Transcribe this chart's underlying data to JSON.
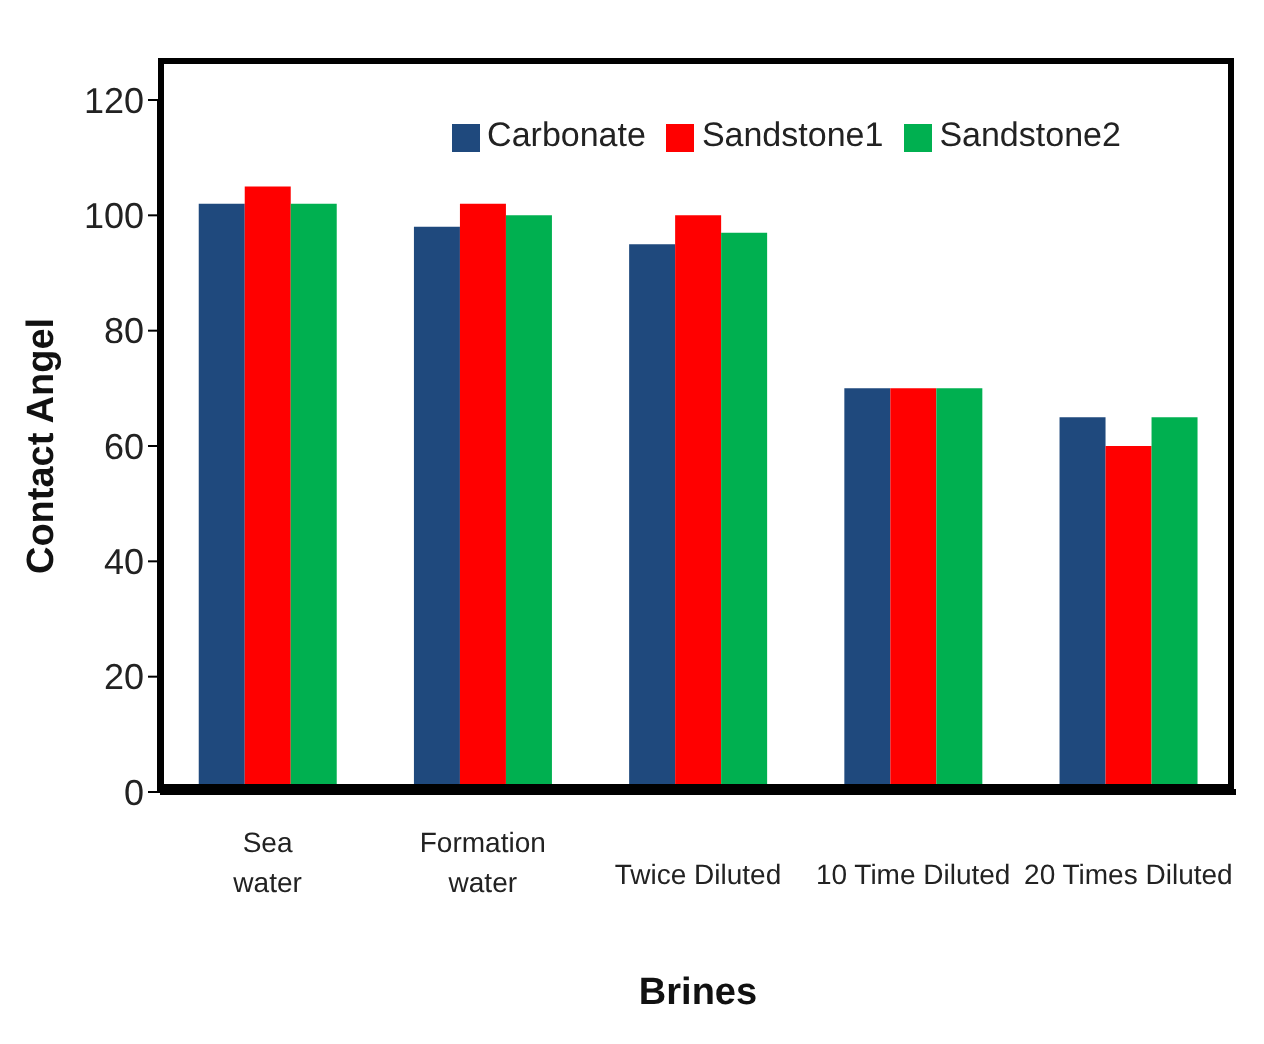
{
  "chart_data": {
    "type": "bar",
    "xlabel": "Brines",
    "ylabel": "Contact Angel",
    "categories": [
      "Sea\nwater",
      "Formation\nwater",
      "Twice Diluted",
      "10 Time Diluted",
      "20 Times Diluted"
    ],
    "series": [
      {
        "name": "Carbonate",
        "color": "#1f497d",
        "values": [
          102,
          98,
          95,
          70,
          65
        ]
      },
      {
        "name": "Sandstone1",
        "color": "#ff0000",
        "values": [
          105,
          102,
          100,
          70,
          60
        ]
      },
      {
        "name": "Sandstone2",
        "color": "#00b050",
        "values": [
          102,
          100,
          97,
          70,
          65
        ]
      }
    ],
    "ylim": [
      0,
      120
    ],
    "yticks": [
      0,
      20,
      40,
      60,
      80,
      100,
      120
    ],
    "grid": false,
    "legend": "top"
  }
}
